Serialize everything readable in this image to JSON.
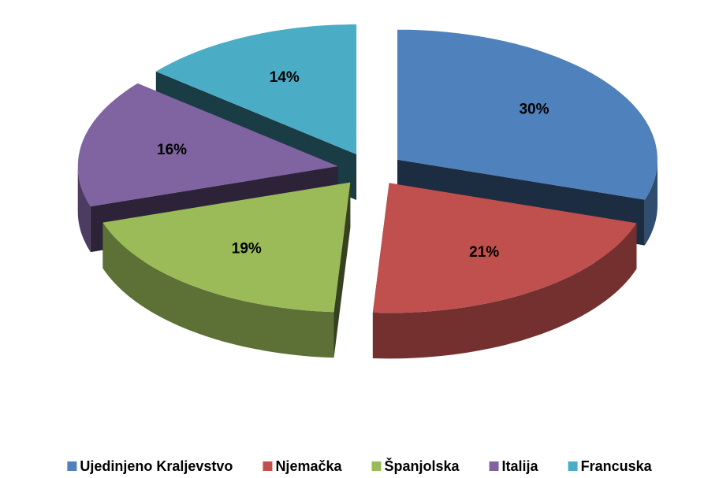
{
  "chart_data": {
    "type": "pie3d",
    "categories": [
      "Ujedinjeno Kraljevstvo",
      "Njemačka",
      "Španjolska",
      "Italija",
      "Francuska"
    ],
    "values": [
      30,
      21,
      19,
      16,
      14
    ],
    "value_labels": [
      "30%",
      "21%",
      "19%",
      "16%",
      "14%"
    ],
    "colors": [
      "#4f81bd",
      "#c0504d",
      "#9bbb59",
      "#8064a2",
      "#4bacc6"
    ],
    "legend": "bottom"
  }
}
